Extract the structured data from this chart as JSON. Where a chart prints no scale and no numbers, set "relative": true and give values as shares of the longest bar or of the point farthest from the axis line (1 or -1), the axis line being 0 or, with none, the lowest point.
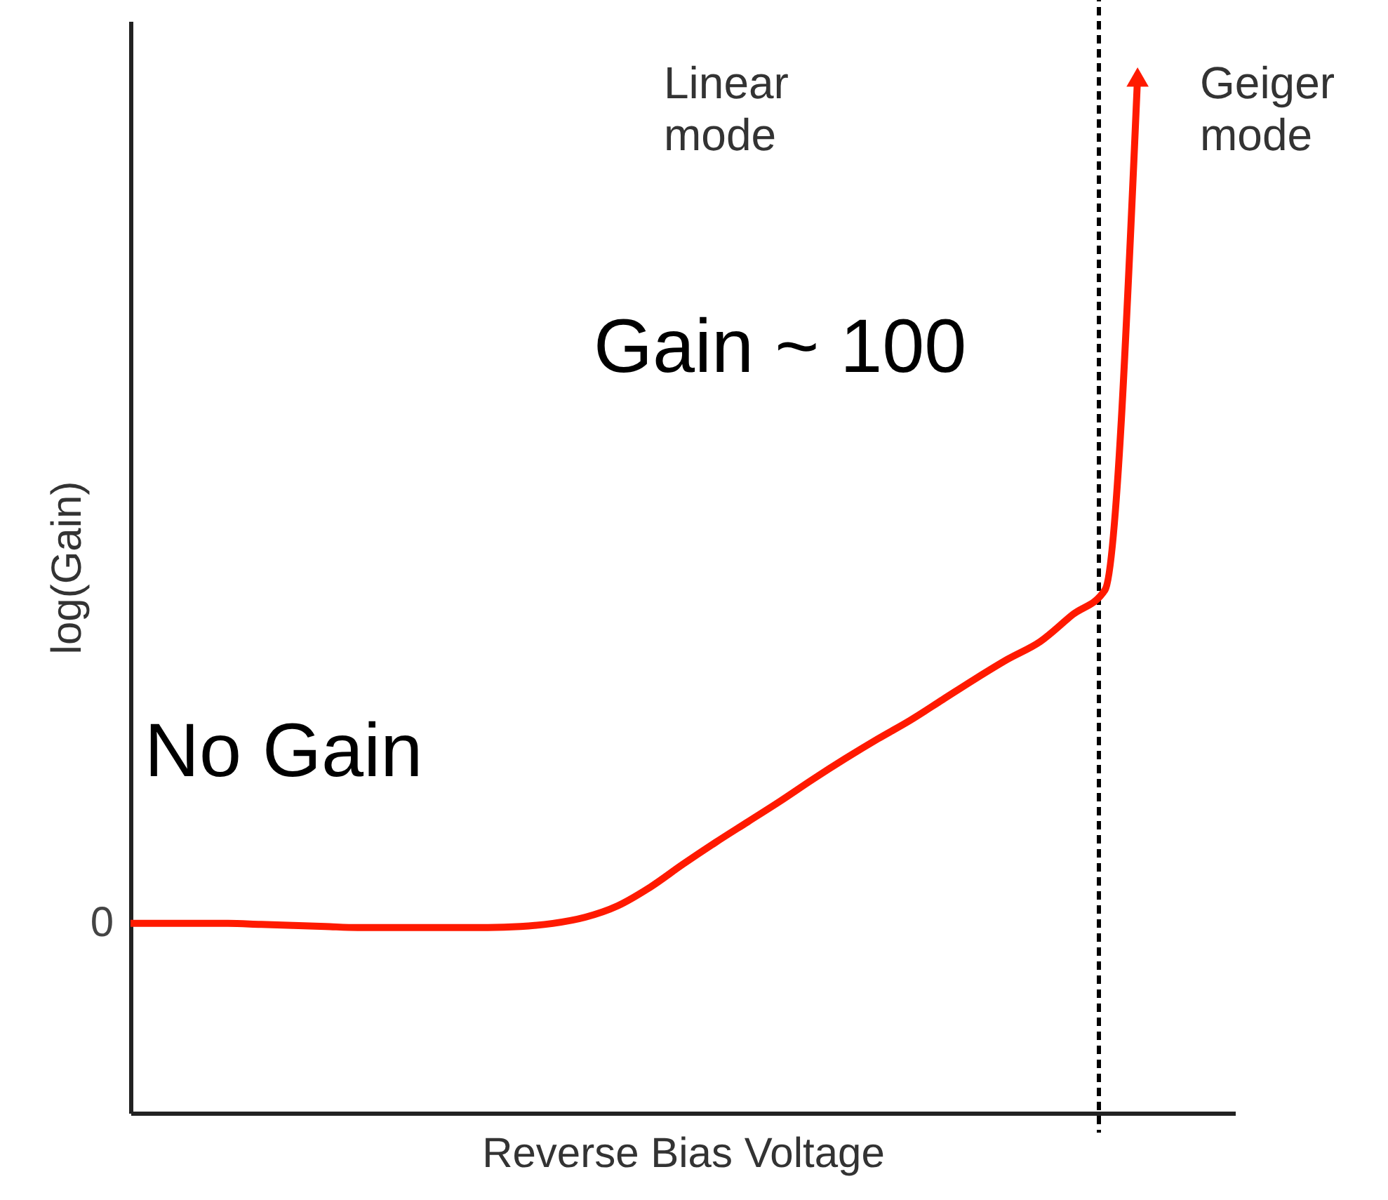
{
  "chart_data": {
    "type": "line",
    "relative": true,
    "xlabel": "Reverse Bias Voltage",
    "ylabel": "log(Gain)",
    "categories": [
      null,
      null,
      null,
      null,
      null,
      null,
      null,
      null,
      null,
      null,
      null,
      null,
      null,
      null,
      null,
      null,
      null,
      null,
      null,
      null,
      null,
      null,
      null,
      null,
      null,
      null,
      null,
      null,
      null,
      null,
      null,
      null,
      null,
      null,
      null
    ],
    "series": [
      {
        "color": "#ff1a00",
        "values": [
          0.183,
          0.183,
          0.183,
          0.183,
          0.182,
          0.181,
          0.18,
          0.179,
          0.179,
          0.179,
          0.179,
          0.179,
          0.18,
          0.183,
          0.189,
          0.2,
          0.218,
          0.24,
          0.261,
          0.281,
          0.301,
          0.322,
          0.342,
          0.361,
          0.379,
          0.399,
          0.419,
          0.438,
          0.455,
          0.481,
          0.505,
          1.0,
          null,
          null,
          null
        ]
      }
    ],
    "annotations": [
      "0",
      "No Gain",
      "Gain ~ 100",
      "Linear mode",
      "Geiger mode"
    ],
    "line_style": "solid",
    "marker": "none",
    "grid": false
  }
}
